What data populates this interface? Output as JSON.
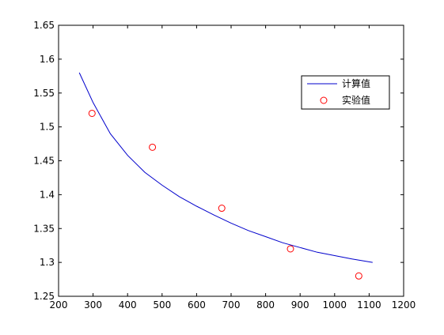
{
  "chart_data": {
    "type": "line",
    "title": "",
    "xlabel": "",
    "ylabel": "",
    "xlim": [
      200,
      1200
    ],
    "ylim": [
      1.25,
      1.65
    ],
    "x_ticks": [
      200,
      300,
      400,
      500,
      600,
      700,
      800,
      900,
      1000,
      1100,
      1200
    ],
    "y_ticks": [
      1.25,
      1.3,
      1.35,
      1.4,
      1.45,
      1.5,
      1.55,
      1.6,
      1.65
    ],
    "x_tick_labels": [
      "200",
      "300",
      "400",
      "500",
      "600",
      "700",
      "800",
      "900",
      "1000",
      "1100",
      "1200"
    ],
    "y_tick_labels": [
      "1.25",
      "1.3",
      "1.35",
      "1.4",
      "1.45",
      "1.5",
      "1.55",
      "1.6",
      "1.65"
    ],
    "grid": false,
    "legend_position": "top-right",
    "series": [
      {
        "name": "计算值",
        "kind": "line",
        "color": "#0000cc",
        "x": [
          260,
          300,
          350,
          400,
          450,
          500,
          550,
          600,
          650,
          700,
          750,
          800,
          850,
          900,
          950,
          1000,
          1050,
          1110
        ],
        "y": [
          1.58,
          1.536,
          1.49,
          1.458,
          1.433,
          1.414,
          1.397,
          1.383,
          1.37,
          1.358,
          1.347,
          1.338,
          1.329,
          1.322,
          1.315,
          1.31,
          1.305,
          1.3
        ]
      },
      {
        "name": "实验值",
        "kind": "scatter",
        "color": "#ff0000",
        "marker": "circle-open",
        "x": [
          297,
          472,
          673,
          872,
          1070
        ],
        "y": [
          1.52,
          1.47,
          1.38,
          1.32,
          1.28
        ]
      }
    ]
  }
}
